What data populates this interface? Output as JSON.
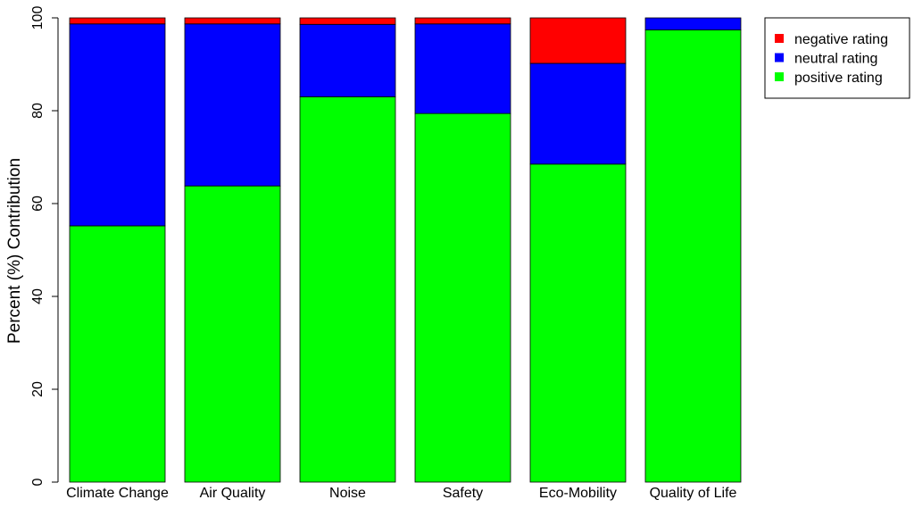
{
  "chart_data": {
    "type": "bar",
    "stacked": true,
    "title": "",
    "xlabel": "",
    "ylabel": "Percent (%) Contribution",
    "ylim": [
      0,
      100
    ],
    "yticks": [
      0,
      20,
      40,
      60,
      80,
      100
    ],
    "grid": false,
    "legend_position": "top-right",
    "categories": [
      "Climate Change",
      "Air Quality",
      "Noise",
      "Safety",
      "Eco-Mobility",
      "Quality of Life"
    ],
    "series": [
      {
        "name": "positive rating",
        "color": "#00ff00",
        "values": [
          55.2,
          63.8,
          83.0,
          79.4,
          68.5,
          97.4
        ]
      },
      {
        "name": "neutral rating",
        "color": "#0000ff",
        "values": [
          43.5,
          34.9,
          15.6,
          19.3,
          21.7,
          2.6
        ]
      },
      {
        "name": "negative rating",
        "color": "#ff0000",
        "values": [
          1.3,
          1.3,
          1.4,
          1.3,
          9.8,
          0.0
        ]
      }
    ],
    "legend_order": [
      "negative rating",
      "neutral rating",
      "positive rating"
    ]
  }
}
